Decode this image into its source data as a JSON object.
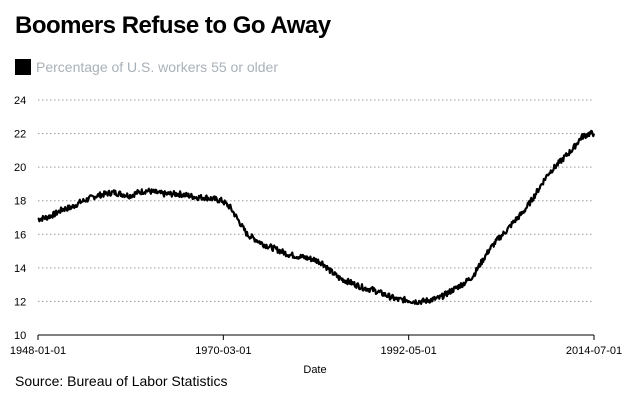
{
  "title": "Boomers Refuse to Go Away",
  "legend_label": "Percentage of U.S. workers 55 or older",
  "source": "Source: Bureau of Labor Statistics",
  "colors": {
    "line": "#000000",
    "grid": "#999999",
    "legend_text": "#a9b1b8"
  },
  "chart_data": {
    "type": "line",
    "title": "Boomers Refuse to Go Away",
    "xlabel": "Date",
    "ylabel": "",
    "x_ticks": [
      "1948-01-01",
      "1970-03-01",
      "1992-05-01",
      "2014-07-01"
    ],
    "xlim": [
      "1948-01-01",
      "2014-07-01"
    ],
    "y_ticks": [
      10,
      12,
      14,
      16,
      18,
      20,
      22,
      24
    ],
    "ylim": [
      10,
      24
    ],
    "grid": "horizontal dotted",
    "legend_position": "top-left",
    "series": [
      {
        "name": "Percentage of U.S. workers 55 or older",
        "x": [
          1948.0,
          1949.0,
          1950.0,
          1951.0,
          1952.0,
          1953.0,
          1954.0,
          1955.0,
          1956.0,
          1957.0,
          1958.0,
          1959.0,
          1960.0,
          1961.0,
          1962.0,
          1963.0,
          1964.0,
          1965.0,
          1966.0,
          1967.0,
          1968.0,
          1969.0,
          1970.0,
          1971.0,
          1972.0,
          1973.0,
          1974.0,
          1975.0,
          1976.0,
          1977.0,
          1978.0,
          1979.0,
          1980.0,
          1981.0,
          1982.0,
          1983.0,
          1984.0,
          1985.0,
          1986.0,
          1987.0,
          1988.0,
          1989.0,
          1990.0,
          1991.0,
          1992.0,
          1993.0,
          1994.0,
          1995.0,
          1996.0,
          1997.0,
          1998.0,
          1999.0,
          2000.0,
          2001.0,
          2002.0,
          2003.0,
          2004.0,
          2005.0,
          2006.0,
          2007.0,
          2008.0,
          2009.0,
          2010.0,
          2011.0,
          2012.0,
          2013.0,
          2014.0,
          2014.5
        ],
        "y": [
          16.9,
          17.0,
          17.2,
          17.5,
          17.6,
          17.9,
          18.1,
          18.3,
          18.4,
          18.5,
          18.4,
          18.3,
          18.5,
          18.6,
          18.5,
          18.4,
          18.4,
          18.4,
          18.3,
          18.2,
          18.2,
          18.1,
          18.0,
          17.6,
          16.8,
          16.0,
          15.7,
          15.4,
          15.2,
          15.0,
          14.8,
          14.7,
          14.6,
          14.5,
          14.3,
          13.8,
          13.4,
          13.2,
          13.0,
          12.8,
          12.7,
          12.5,
          12.3,
          12.1,
          12.1,
          12.0,
          12.0,
          12.1,
          12.2,
          12.5,
          12.8,
          13.1,
          13.5,
          14.3,
          15.1,
          15.7,
          16.2,
          16.8,
          17.3,
          18.0,
          18.8,
          19.6,
          20.1,
          20.6,
          21.1,
          21.8,
          22.0,
          22.0
        ]
      }
    ]
  }
}
